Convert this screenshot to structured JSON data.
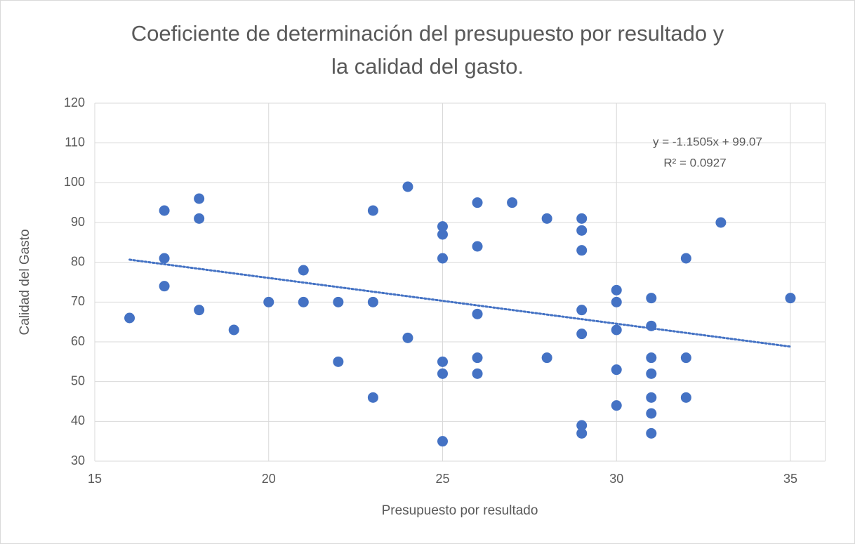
{
  "chart_data": {
    "type": "scatter",
    "title": [
      "Coeficiente de determinación del presupuesto por resultado y",
      "la calidad del gasto."
    ],
    "x_label": "Presupuesto por resultado",
    "y_label": "Calidad del Gasto",
    "color": "#4472c4",
    "grid": true,
    "x": [
      16,
      17,
      17,
      17,
      18,
      18,
      18,
      19,
      20,
      21,
      21,
      22,
      22,
      23,
      23,
      23,
      24,
      24,
      25,
      25,
      25,
      25,
      25,
      25,
      26,
      26,
      26,
      26,
      26,
      27,
      28,
      28,
      29,
      29,
      29,
      29,
      29,
      29,
      29,
      30,
      30,
      30,
      30,
      30,
      31,
      31,
      31,
      31,
      31,
      31,
      31,
      32,
      32,
      32,
      33,
      35
    ],
    "values": [
      66,
      93,
      81,
      74,
      96,
      91,
      68,
      63,
      70,
      78,
      70,
      70,
      55,
      93,
      70,
      46,
      99,
      61,
      89,
      87,
      81,
      55,
      52,
      35,
      95,
      84,
      67,
      56,
      52,
      95,
      91,
      56,
      91,
      88,
      83,
      68,
      62,
      39,
      37,
      73,
      70,
      63,
      53,
      44,
      71,
      64,
      56,
      52,
      46,
      42,
      37,
      81,
      56,
      46,
      90,
      71
    ],
    "xlim": [
      15,
      36
    ],
    "xticks": [
      15,
      20,
      25,
      30,
      35
    ],
    "ylim": [
      30,
      120
    ],
    "yticks": [
      30,
      40,
      50,
      60,
      70,
      80,
      90,
      100,
      110,
      120
    ],
    "trendline": {
      "slope": -1.1505,
      "intercept": 99.07,
      "label": "y = -1.1505x + 99.07",
      "r2": 0.0927,
      "r2_label": "R² = 0.0927"
    }
  }
}
